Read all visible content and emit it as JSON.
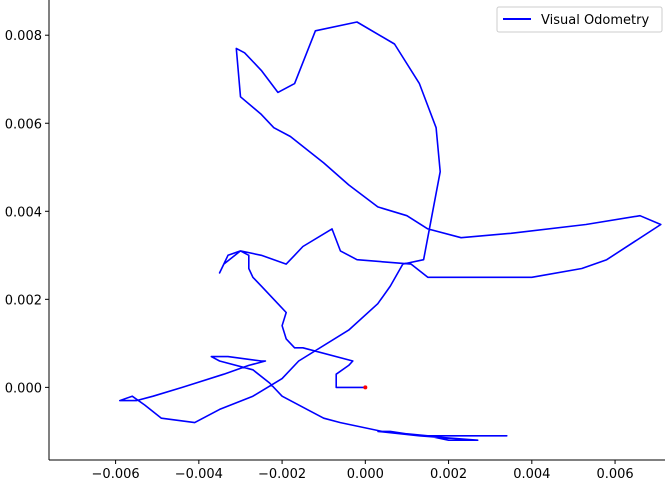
{
  "chart_data": {
    "type": "line",
    "title": "",
    "xlabel": "",
    "ylabel": "",
    "xlim": [
      -0.0076,
      0.0072
    ],
    "ylim": [
      -0.00165,
      0.0088
    ],
    "xticks": [
      -0.006,
      -0.004,
      -0.002,
      0.0,
      0.002,
      0.004,
      0.006
    ],
    "xtick_labels": [
      "−0.006",
      "−0.004",
      "−0.002",
      "0.000",
      "0.002",
      "0.004",
      "0.006"
    ],
    "yticks": [
      0.0,
      0.002,
      0.004,
      0.006,
      0.008
    ],
    "ytick_labels": [
      "0.000",
      "0.002",
      "0.004",
      "0.006",
      "0.008"
    ],
    "grid": false,
    "legend_position": "top-right",
    "series": [
      {
        "name": "Visual Odometry",
        "color": "#0000ff",
        "points": [
          [
            0.0,
            0.0
          ],
          [
            -0.0007,
            0.0
          ],
          [
            -0.0007,
            0.0003
          ],
          [
            -0.0004,
            0.0005
          ],
          [
            -0.0003,
            0.0006
          ],
          [
            -0.0015,
            0.0009
          ],
          [
            -0.0017,
            0.0009
          ],
          [
            -0.0019,
            0.0011
          ],
          [
            -0.002,
            0.0014
          ],
          [
            -0.0019,
            0.0017
          ],
          [
            -0.0021,
            0.0019
          ],
          [
            -0.0025,
            0.0023
          ],
          [
            -0.0027,
            0.0025
          ],
          [
            -0.0028,
            0.0027
          ],
          [
            -0.0028,
            0.003
          ],
          [
            -0.003,
            0.0031
          ],
          [
            -0.0033,
            0.003
          ],
          [
            -0.0035,
            0.0026
          ],
          [
            -0.0034,
            0.0028
          ],
          [
            -0.003,
            0.0031
          ],
          [
            -0.0025,
            0.003
          ],
          [
            -0.0019,
            0.0028
          ],
          [
            -0.0017,
            0.003
          ],
          [
            -0.0015,
            0.0032
          ],
          [
            -0.0008,
            0.0036
          ],
          [
            -0.0006,
            0.0031
          ],
          [
            -0.0002,
            0.0029
          ],
          [
            0.0011,
            0.0028
          ],
          [
            0.0015,
            0.0025
          ],
          [
            0.004,
            0.0025
          ],
          [
            0.0052,
            0.0027
          ],
          [
            0.0058,
            0.0029
          ],
          [
            0.0071,
            0.0037
          ],
          [
            0.0066,
            0.0039
          ],
          [
            0.0053,
            0.0037
          ],
          [
            0.0035,
            0.0035
          ],
          [
            0.0023,
            0.0034
          ],
          [
            0.0015,
            0.0036
          ],
          [
            0.001,
            0.0039
          ],
          [
            0.0003,
            0.0041
          ],
          [
            -0.0004,
            0.0046
          ],
          [
            -0.001,
            0.0051
          ],
          [
            -0.0014,
            0.0054
          ],
          [
            -0.0018,
            0.0057
          ],
          [
            -0.0022,
            0.0059
          ],
          [
            -0.0025,
            0.0062
          ],
          [
            -0.003,
            0.0066
          ],
          [
            -0.0031,
            0.0077
          ],
          [
            -0.0029,
            0.0076
          ],
          [
            -0.0025,
            0.0072
          ],
          [
            -0.0021,
            0.0067
          ],
          [
            -0.0017,
            0.0069
          ],
          [
            -0.0012,
            0.0081
          ],
          [
            -0.0002,
            0.0083
          ],
          [
            0.0007,
            0.0078
          ],
          [
            0.0013,
            0.0069
          ],
          [
            0.0017,
            0.0059
          ],
          [
            0.0018,
            0.0049
          ],
          [
            0.0016,
            0.0039
          ],
          [
            0.0014,
            0.0029
          ],
          [
            0.0009,
            0.0028
          ],
          [
            0.0006,
            0.0023
          ],
          [
            0.0003,
            0.0019
          ],
          [
            -0.0004,
            0.0013
          ],
          [
            -0.0016,
            0.0006
          ],
          [
            -0.002,
            0.0002
          ],
          [
            -0.0027,
            -0.0002
          ],
          [
            -0.0035,
            -0.0005
          ],
          [
            -0.0041,
            -0.0008
          ],
          [
            -0.0049,
            -0.0007
          ],
          [
            -0.0053,
            -0.0004
          ],
          [
            -0.0056,
            -0.0002
          ],
          [
            -0.0059,
            -0.0003
          ],
          [
            -0.0055,
            -0.0003
          ],
          [
            -0.0051,
            -0.0002
          ],
          [
            -0.0044,
            0.0
          ],
          [
            -0.0034,
            0.0003
          ],
          [
            -0.0028,
            0.0005
          ],
          [
            -0.0024,
            0.0006
          ],
          [
            -0.0025,
            0.0006
          ],
          [
            -0.0033,
            0.0007
          ],
          [
            -0.0037,
            0.0007
          ],
          [
            -0.0035,
            0.0006
          ],
          [
            -0.0027,
            0.0004
          ],
          [
            -0.0023,
            0.0001
          ],
          [
            -0.002,
            -0.0002
          ],
          [
            -0.0014,
            -0.0005
          ],
          [
            -0.001,
            -0.0007
          ],
          [
            -0.0006,
            -0.0008
          ],
          [
            0.0004,
            -0.001
          ],
          [
            0.0015,
            -0.0011
          ],
          [
            0.002,
            -0.0012
          ],
          [
            0.0027,
            -0.0012
          ],
          [
            0.0013,
            -0.0011
          ],
          [
            0.0006,
            -0.001
          ],
          [
            0.0003,
            -0.001
          ],
          [
            0.0013,
            -0.0011
          ],
          [
            0.0022,
            -0.0011
          ],
          [
            0.0034,
            -0.0011
          ],
          [
            0.0021,
            -0.0011
          ]
        ]
      }
    ],
    "marker": {
      "x": 0.0,
      "y": 0.0,
      "color": "#ff0000"
    },
    "spines": {
      "top": false,
      "right": false
    }
  }
}
